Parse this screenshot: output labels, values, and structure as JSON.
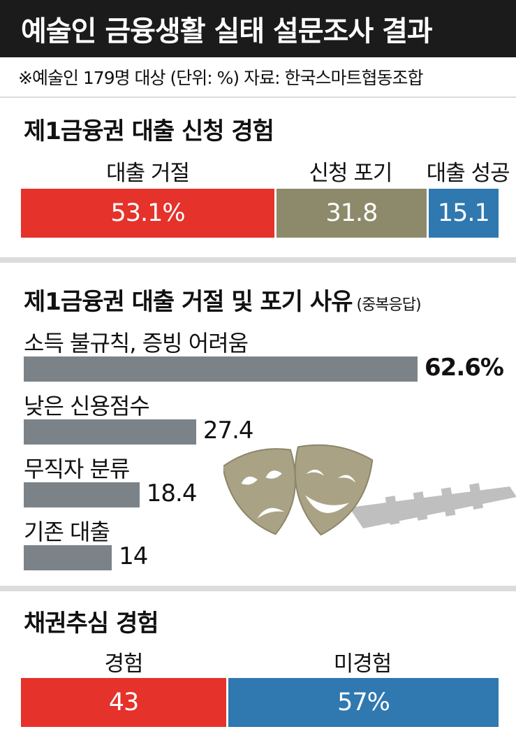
{
  "header": {
    "title": "예술인 금융생활 실태 설문조사 결과"
  },
  "note": {
    "text": "※예술인 179명 대상 (단위: %) 자료: 한국스마트협동조합"
  },
  "colors": {
    "red": "#e5322a",
    "olive": "#8d8a6b",
    "blue": "#2f78b0",
    "gray_bar": "#7b8389"
  },
  "panel1": {
    "title": "제1금융권 대출 신청 경험",
    "labels": [
      "대출 거절",
      "신청 포기",
      "대출 성공"
    ],
    "segments": [
      {
        "value_label": "53.1%"
      },
      {
        "value_label": "31.8"
      },
      {
        "value_label": "15.1"
      }
    ]
  },
  "panel2": {
    "title": "제1금융권 대출 거절 및 포기 사유",
    "subtitle": "(중복응답)",
    "items": [
      {
        "label": "소득 불규칙, 증빙 어려움",
        "value_label": "62.6%"
      },
      {
        "label": "낮은 신용점수",
        "value_label": "27.4"
      },
      {
        "label": "무직자 분류",
        "value_label": "18.4"
      },
      {
        "label": "기존 대출",
        "value_label": "14"
      }
    ],
    "decoration": "theater-masks-icon"
  },
  "panel3": {
    "title": "채권추심 경험",
    "labels": [
      "경험",
      "미경험"
    ],
    "segments": [
      {
        "value_label": "43"
      },
      {
        "value_label": "57%"
      }
    ]
  },
  "chart_data": [
    {
      "type": "bar",
      "title": "제1금융권 대출 신청 경험",
      "stacked": true,
      "categories": [
        "대출 거절",
        "신청 포기",
        "대출 성공"
      ],
      "values": [
        53.1,
        31.8,
        15.1
      ],
      "colors": [
        "#e5322a",
        "#8d8a6b",
        "#2f78b0"
      ]
    },
    {
      "type": "bar",
      "orientation": "horizontal",
      "title": "제1금융권 대출 거절 및 포기 사유",
      "subtitle": "(중복응답)",
      "categories": [
        "소득 불규칙, 증빙 어려움",
        "낮은 신용점수",
        "무직자 분류",
        "기존 대출"
      ],
      "values": [
        62.6,
        27.4,
        18.4,
        14
      ]
    },
    {
      "type": "bar",
      "title": "채권추심 경험",
      "stacked": true,
      "categories": [
        "경험",
        "미경험"
      ],
      "values": [
        43,
        57
      ],
      "colors": [
        "#e5322a",
        "#2f78b0"
      ]
    }
  ]
}
